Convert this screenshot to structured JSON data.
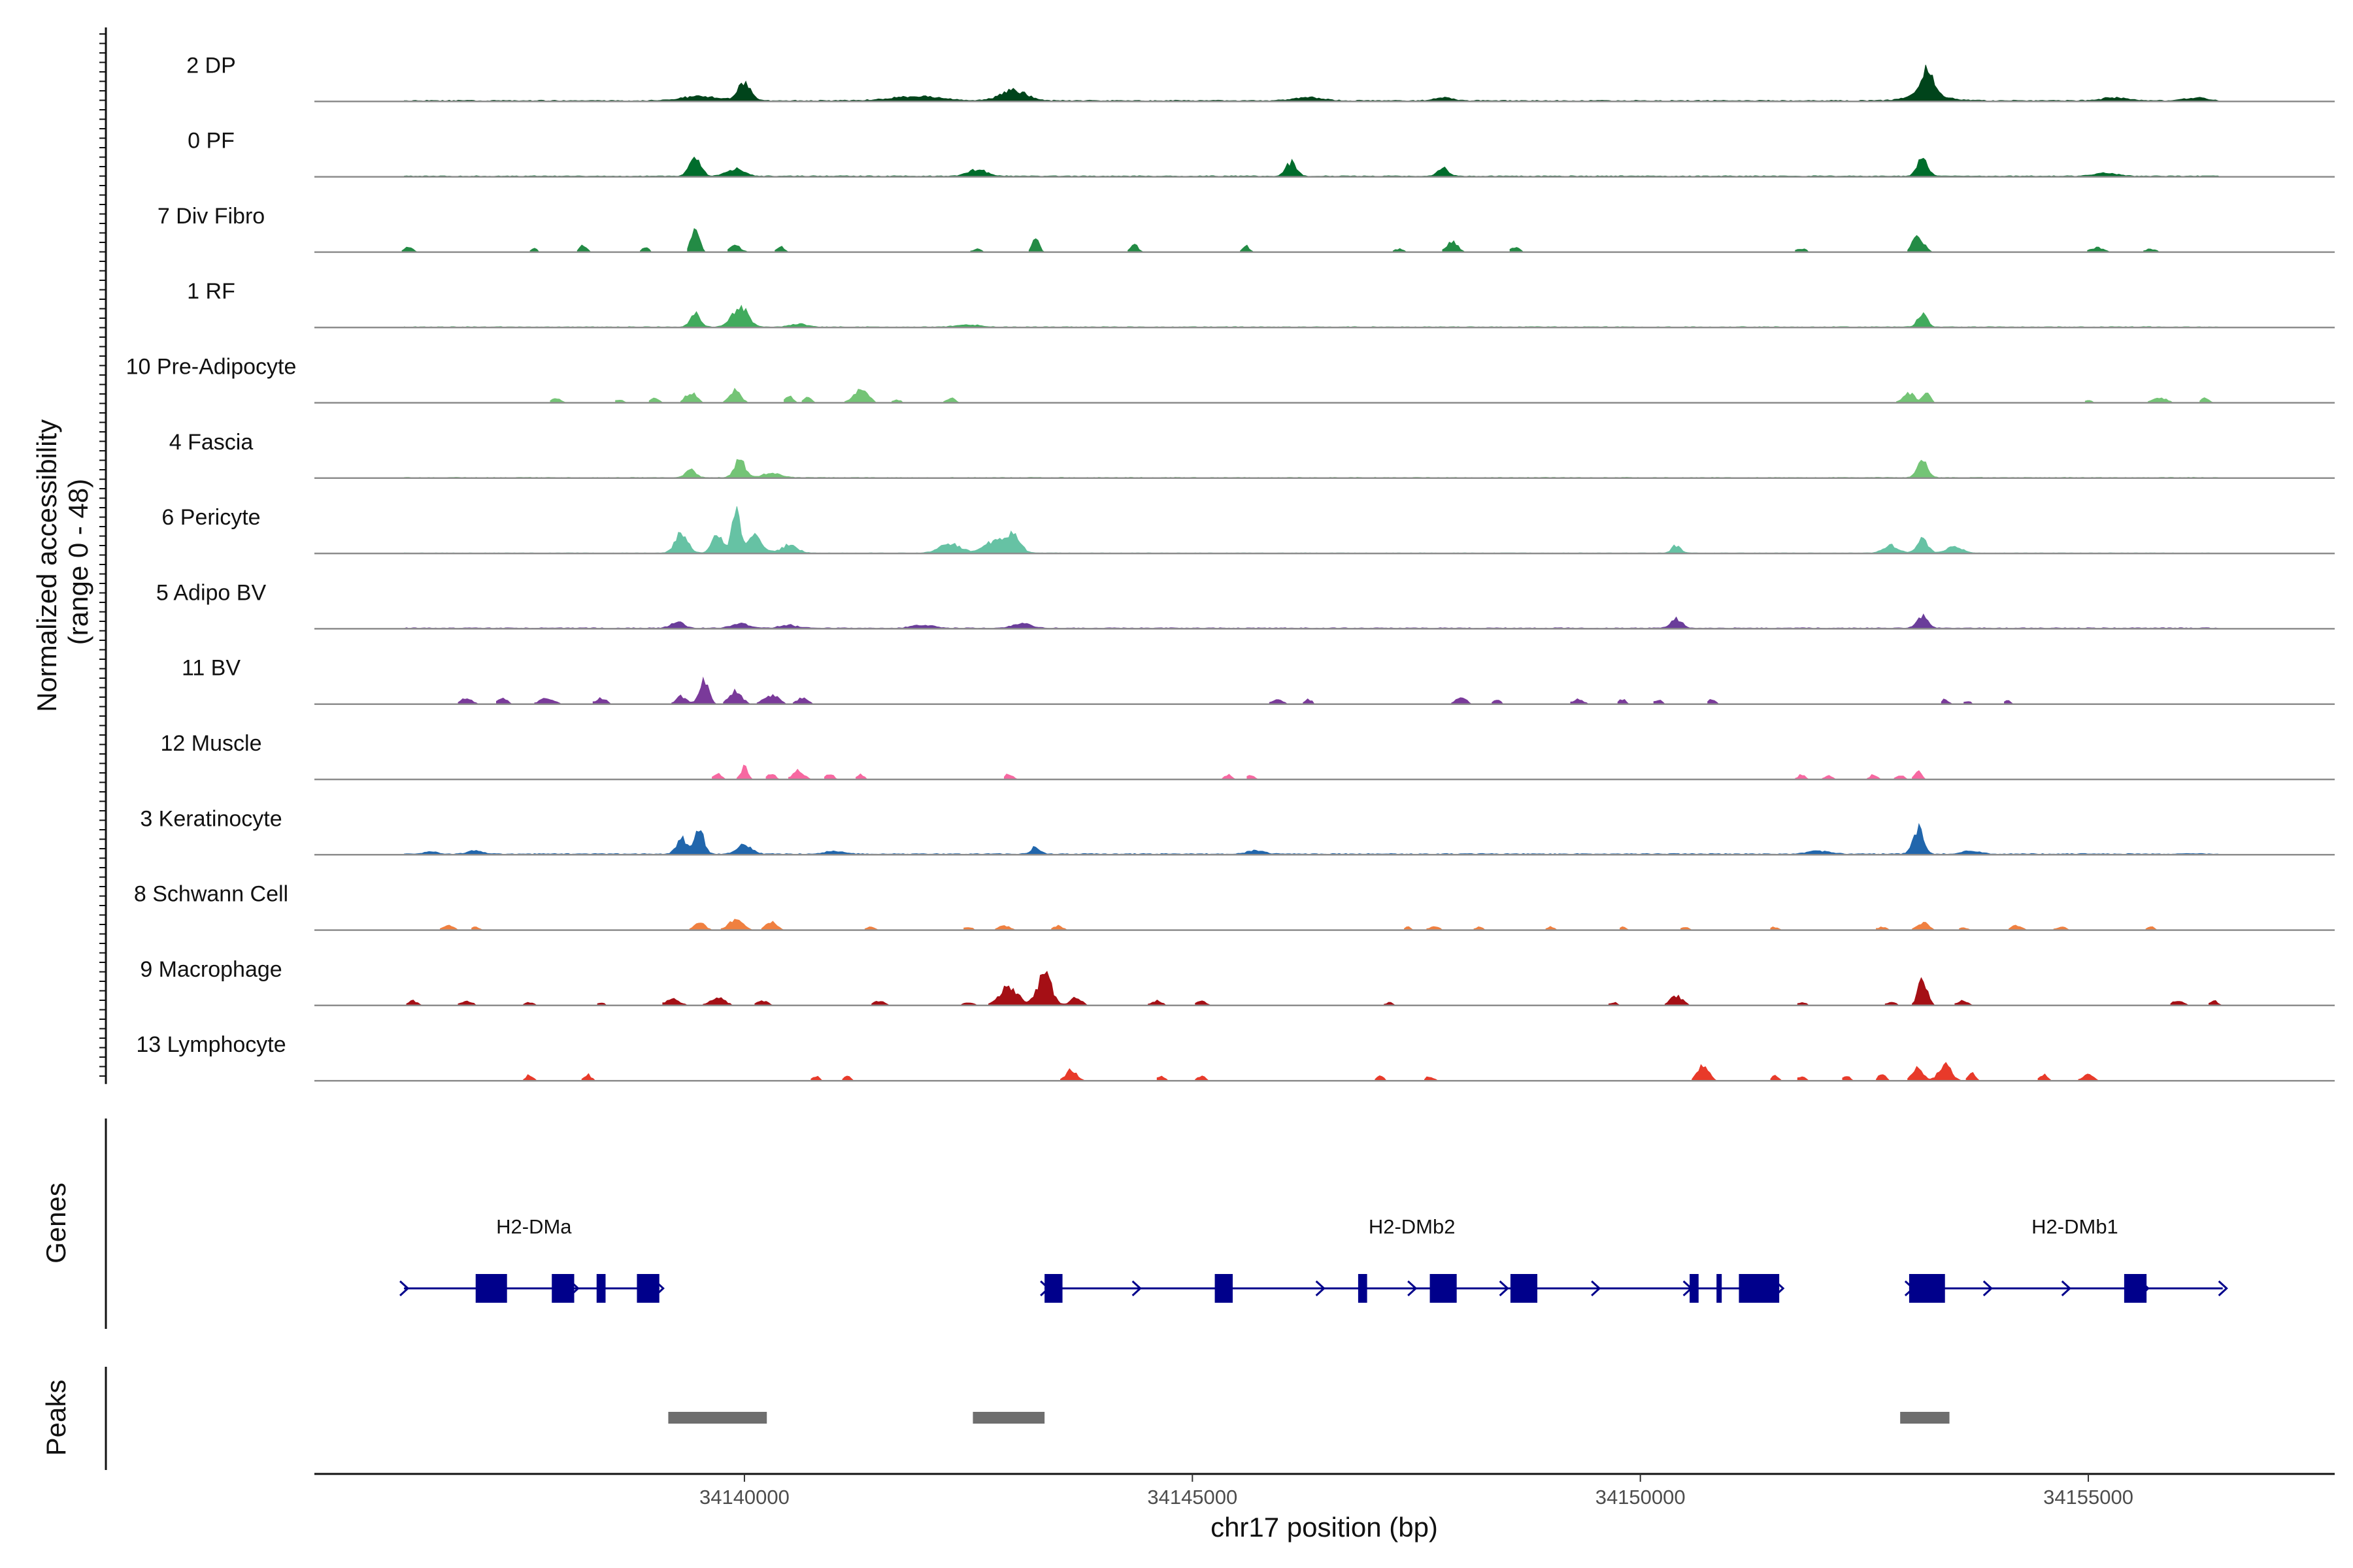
{
  "chart_data": {
    "type": "area",
    "ylabel": "Normalized accessibility",
    "ylabel_range": "(range 0 - 48)",
    "ylim": [
      0,
      48
    ],
    "xlabel": "chr17 position (bp)",
    "xlim": [
      34135200,
      34157750
    ],
    "xticks": [
      34140000,
      34145000,
      34150000,
      34155000
    ],
    "xtick_labels": [
      "34140000",
      "34145000",
      "34150000",
      "34155000"
    ],
    "tracks": [
      {
        "name": "2 DP",
        "color": "#00441b",
        "base": 0.6,
        "noise": "continuous",
        "peaks": [
          [
            34140000,
            12,
            70
          ],
          [
            34139500,
            3,
            200
          ],
          [
            34141900,
            3,
            260
          ],
          [
            34143000,
            7,
            140
          ],
          [
            34146300,
            2,
            160
          ],
          [
            34147800,
            2,
            100
          ],
          [
            34153200,
            16,
            70
          ],
          [
            34153200,
            4,
            200
          ],
          [
            34155300,
            2,
            140
          ],
          [
            34156200,
            2,
            120
          ]
        ]
      },
      {
        "name": "0 PF",
        "color": "#006d2c",
        "base": 0.5,
        "noise": "continuous",
        "peaks": [
          [
            34139450,
            12,
            65
          ],
          [
            34139900,
            5,
            90
          ],
          [
            34142600,
            4,
            110
          ],
          [
            34146100,
            9,
            60
          ],
          [
            34147800,
            5,
            60
          ],
          [
            34153150,
            14,
            55
          ],
          [
            34155200,
            2,
            120
          ]
        ]
      },
      {
        "name": "7 Div Fibro",
        "color": "#238b45",
        "base": 0.2,
        "noise": "patchy",
        "peaks": [
          [
            34136250,
            4,
            40
          ],
          [
            34137650,
            3,
            30
          ],
          [
            34138200,
            5,
            40
          ],
          [
            34138900,
            3,
            40
          ],
          [
            34139450,
            16,
            45
          ],
          [
            34139900,
            4,
            60
          ],
          [
            34140400,
            4,
            40
          ],
          [
            34142600,
            2,
            50
          ],
          [
            34143250,
            8,
            40
          ],
          [
            34144350,
            5,
            40
          ],
          [
            34145600,
            4,
            40
          ],
          [
            34147300,
            2,
            50
          ],
          [
            34147900,
            7,
            60
          ],
          [
            34148600,
            3,
            50
          ],
          [
            34151800,
            2,
            60
          ],
          [
            34153100,
            11,
            60
          ],
          [
            34155100,
            3,
            80
          ],
          [
            34155700,
            2,
            60
          ]
        ]
      },
      {
        "name": "1 RF",
        "color": "#41ab5d",
        "base": 0.4,
        "noise": "continuous",
        "peaks": [
          [
            34139450,
            9,
            55
          ],
          [
            34139950,
            14,
            85
          ],
          [
            34140600,
            2,
            90
          ],
          [
            34142500,
            1.5,
            120
          ],
          [
            34153150,
            9,
            50
          ]
        ]
      },
      {
        "name": "10 Pre-Adipocyte",
        "color": "#74c476",
        "base": 0.15,
        "noise": "patchy",
        "peaks": [
          [
            34137900,
            3,
            50
          ],
          [
            34138600,
            2,
            40
          ],
          [
            34139000,
            3,
            50
          ],
          [
            34139400,
            7,
            60
          ],
          [
            34139900,
            8,
            60
          ],
          [
            34140500,
            5,
            40
          ],
          [
            34140700,
            4,
            40
          ],
          [
            34141300,
            8,
            80
          ],
          [
            34141700,
            2,
            50
          ],
          [
            34142300,
            3,
            50
          ],
          [
            34153000,
            6,
            70
          ],
          [
            34153200,
            7,
            40
          ],
          [
            34155000,
            2,
            40
          ],
          [
            34155800,
            3,
            80
          ],
          [
            34156300,
            4,
            40
          ]
        ]
      },
      {
        "name": "4 Fascia",
        "color": "#74c476",
        "base": 0.4,
        "noise": "continuous",
        "peaks": [
          [
            34139400,
            5,
            60
          ],
          [
            34139950,
            12,
            60
          ],
          [
            34140300,
            3,
            100
          ],
          [
            34153150,
            10,
            60
          ]
        ]
      },
      {
        "name": "6 Pericyte",
        "color": "#66c2a4",
        "base": 0.3,
        "noise": "continuous",
        "peaks": [
          [
            34139300,
            13,
            70
          ],
          [
            34139700,
            12,
            60
          ],
          [
            34139900,
            30,
            40
          ],
          [
            34140100,
            12,
            90
          ],
          [
            34140500,
            5,
            90
          ],
          [
            34142300,
            6,
            120
          ],
          [
            34142800,
            8,
            110
          ],
          [
            34143000,
            11,
            80
          ],
          [
            34150400,
            5,
            50
          ],
          [
            34152800,
            5,
            80
          ],
          [
            34153150,
            9,
            60
          ],
          [
            34153500,
            4,
            90
          ]
        ]
      },
      {
        "name": "5 Adipo BV",
        "color": "#6a3d9a",
        "base": 0.5,
        "noise": "continuous",
        "peaks": [
          [
            34139250,
            4,
            70
          ],
          [
            34139950,
            3,
            90
          ],
          [
            34140500,
            2,
            100
          ],
          [
            34142000,
            2,
            120
          ],
          [
            34143100,
            3,
            100
          ],
          [
            34150400,
            6,
            60
          ],
          [
            34153150,
            8,
            60
          ]
        ]
      },
      {
        "name": "11 BV",
        "color": "#7a3a9a",
        "base": 0.1,
        "noise": "patchy",
        "peaks": [
          [
            34136900,
            4,
            60
          ],
          [
            34137300,
            4,
            50
          ],
          [
            34137800,
            4,
            80
          ],
          [
            34138400,
            4,
            60
          ],
          [
            34139300,
            5,
            60
          ],
          [
            34139550,
            16,
            50
          ],
          [
            34139900,
            8,
            70
          ],
          [
            34140300,
            6,
            80
          ],
          [
            34140650,
            4,
            60
          ],
          [
            34145950,
            3,
            60
          ],
          [
            34146300,
            3,
            40
          ],
          [
            34148000,
            4,
            60
          ],
          [
            34148400,
            3,
            40
          ],
          [
            34149300,
            3,
            60
          ],
          [
            34149800,
            3,
            40
          ],
          [
            34150200,
            3,
            40
          ],
          [
            34150800,
            3,
            40
          ],
          [
            34153400,
            3,
            40
          ],
          [
            34153650,
            2,
            40
          ],
          [
            34154100,
            2,
            40
          ]
        ]
      },
      {
        "name": "12 Muscle",
        "color": "#f768a1",
        "base": 0.05,
        "noise": "patchy",
        "peaks": [
          [
            34139700,
            4,
            40
          ],
          [
            34140000,
            8,
            40
          ],
          [
            34140300,
            4,
            40
          ],
          [
            34140600,
            6,
            60
          ],
          [
            34140950,
            4,
            40
          ],
          [
            34141300,
            3,
            40
          ],
          [
            34142950,
            4,
            40
          ],
          [
            34145400,
            3,
            40
          ],
          [
            34145650,
            3,
            40
          ],
          [
            34151800,
            3,
            40
          ],
          [
            34152100,
            3,
            40
          ],
          [
            34152600,
            3,
            40
          ],
          [
            34152900,
            3,
            40
          ],
          [
            34153100,
            5,
            40
          ]
        ]
      },
      {
        "name": "3 Keratinocyte",
        "color": "#2166ac",
        "base": 0.6,
        "noise": "continuous",
        "peaks": [
          [
            34136500,
            2,
            60
          ],
          [
            34137000,
            2,
            80
          ],
          [
            34139300,
            10,
            60
          ],
          [
            34139500,
            16,
            50
          ],
          [
            34140000,
            6,
            80
          ],
          [
            34141000,
            2,
            100
          ],
          [
            34143250,
            5,
            50
          ],
          [
            34145700,
            2,
            100
          ],
          [
            34152000,
            2,
            120
          ],
          [
            34153100,
            17,
            55
          ],
          [
            34153700,
            2,
            100
          ]
        ]
      },
      {
        "name": "8 Schwann Cell",
        "color": "#f08040",
        "base": 0.05,
        "noise": "patchy",
        "peaks": [
          [
            34136700,
            3,
            60
          ],
          [
            34137000,
            2,
            40
          ],
          [
            34139500,
            5,
            60
          ],
          [
            34139900,
            7,
            80
          ],
          [
            34140300,
            5,
            60
          ],
          [
            34141400,
            2,
            50
          ],
          [
            34142500,
            2,
            50
          ],
          [
            34142900,
            3,
            60
          ],
          [
            34143500,
            3,
            50
          ],
          [
            34147400,
            2,
            40
          ],
          [
            34147700,
            2,
            60
          ],
          [
            34148200,
            2,
            40
          ],
          [
            34149000,
            2,
            40
          ],
          [
            34149800,
            2,
            40
          ],
          [
            34150500,
            2,
            40
          ],
          [
            34151500,
            2,
            40
          ],
          [
            34152700,
            2,
            60
          ],
          [
            34153150,
            5,
            60
          ],
          [
            34153600,
            2,
            40
          ],
          [
            34154200,
            3,
            60
          ],
          [
            34154700,
            2,
            60
          ],
          [
            34155700,
            2,
            40
          ]
        ]
      },
      {
        "name": "9 Macrophage",
        "color": "#a50f15",
        "base": 0.1,
        "noise": "patchy",
        "peaks": [
          [
            34136300,
            3,
            50
          ],
          [
            34136900,
            3,
            60
          ],
          [
            34137600,
            2,
            50
          ],
          [
            34138400,
            2,
            40
          ],
          [
            34139200,
            4,
            80
          ],
          [
            34139700,
            5,
            80
          ],
          [
            34140200,
            3,
            60
          ],
          [
            34141500,
            3,
            60
          ],
          [
            34142500,
            2,
            50
          ],
          [
            34142950,
            12,
            100
          ],
          [
            34143350,
            20,
            80
          ],
          [
            34143700,
            5,
            60
          ],
          [
            34144600,
            3,
            60
          ],
          [
            34145100,
            3,
            50
          ],
          [
            34147200,
            2,
            40
          ],
          [
            34149700,
            2,
            40
          ],
          [
            34150400,
            6,
            70
          ],
          [
            34151800,
            2,
            50
          ],
          [
            34152800,
            2,
            60
          ],
          [
            34153150,
            18,
            50
          ],
          [
            34153600,
            3,
            60
          ],
          [
            34156000,
            3,
            60
          ],
          [
            34156400,
            3,
            40
          ]
        ]
      },
      {
        "name": "13 Lymphocyte",
        "color": "#e83a2a",
        "base": 0.05,
        "noise": "patchy",
        "peaks": [
          [
            34137600,
            4,
            40
          ],
          [
            34138250,
            4,
            40
          ],
          [
            34140800,
            3,
            40
          ],
          [
            34141150,
            3,
            40
          ],
          [
            34143650,
            7,
            60
          ],
          [
            34144650,
            3,
            40
          ],
          [
            34145100,
            3,
            40
          ],
          [
            34147100,
            3,
            40
          ],
          [
            34147650,
            3,
            40
          ],
          [
            34150700,
            10,
            60
          ],
          [
            34151500,
            3,
            40
          ],
          [
            34151800,
            3,
            40
          ],
          [
            34152300,
            3,
            40
          ],
          [
            34152700,
            5,
            40
          ],
          [
            34153100,
            8,
            60
          ],
          [
            34153400,
            10,
            70
          ],
          [
            34153700,
            5,
            40
          ],
          [
            34154500,
            4,
            40
          ],
          [
            34155000,
            4,
            60
          ]
        ]
      }
    ],
    "genes_track_title": "Genes",
    "genes": [
      {
        "name": "H2-DMa",
        "start": 34136200,
        "end": 34139050,
        "label_x": 34137650,
        "exons": [
          [
            34137000,
            34137350
          ],
          [
            34137850,
            34138100
          ],
          [
            34138350,
            34138450
          ],
          [
            34138800,
            34139050
          ]
        ]
      },
      {
        "name": "H2-DMb2",
        "start": 34143350,
        "end": 34151550,
        "label_x": 34147450,
        "exons": [
          [
            34143350,
            34143550
          ],
          [
            34145250,
            34145450
          ],
          [
            34146850,
            34146950
          ],
          [
            34147650,
            34147950
          ],
          [
            34148550,
            34148850
          ],
          [
            34150550,
            34150650
          ],
          [
            34150850,
            34150870
          ],
          [
            34151100,
            34151550
          ]
        ]
      },
      {
        "name": "H2-DMb1",
        "start": 34153000,
        "end": 34156500,
        "label_x": 34154850,
        "exons": [
          [
            34153000,
            34153400
          ],
          [
            34155400,
            34155650
          ]
        ]
      }
    ],
    "peaks_track_title": "Peaks",
    "peaks": [
      [
        34139150,
        34140250
      ],
      [
        34142550,
        34143350
      ],
      [
        34152900,
        34153450
      ]
    ]
  }
}
